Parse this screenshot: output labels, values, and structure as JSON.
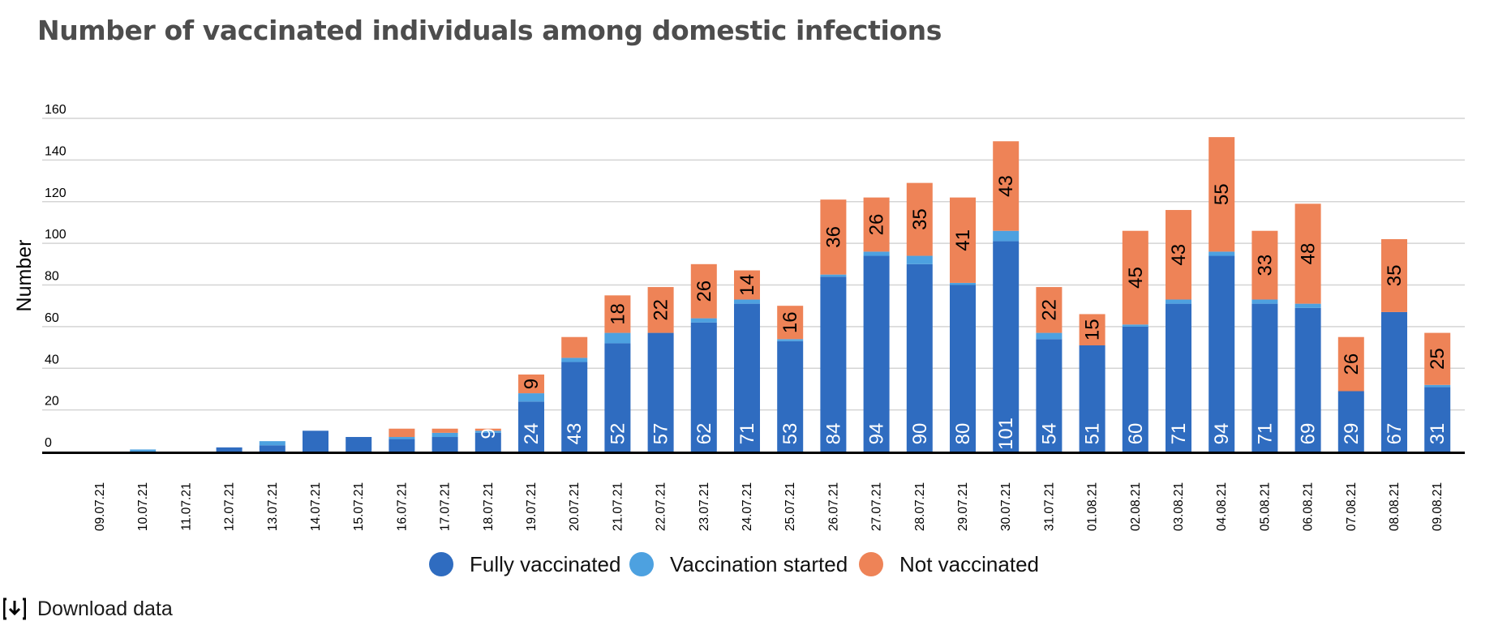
{
  "title": "Number of vaccinated individuals among domestic infections",
  "download_label": "Download data",
  "colors": {
    "fully": "#2f6cc0",
    "started": "#4da1e0",
    "not": "#ee8357",
    "grid": "#d4d4d4",
    "axis": "#000000"
  },
  "chart_data": {
    "type": "bar",
    "stacked": true,
    "ylabel": "Number",
    "ylim": [
      0,
      160
    ],
    "yticks": [
      0,
      20,
      40,
      60,
      80,
      100,
      120,
      140,
      160
    ],
    "grid": true,
    "legend_position": "bottom-center",
    "categories": [
      "09.07.21",
      "10.07.21",
      "11.07.21",
      "12.07.21",
      "13.07.21",
      "14.07.21",
      "15.07.21",
      "16.07.21",
      "17.07.21",
      "18.07.21",
      "19.07.21",
      "20.07.21",
      "21.07.21",
      "22.07.21",
      "23.07.21",
      "24.07.21",
      "25.07.21",
      "26.07.21",
      "27.07.21",
      "28.07.21",
      "29.07.21",
      "30.07.21",
      "31.07.21",
      "01.08.21",
      "02.08.21",
      "03.08.21",
      "04.08.21",
      "05.08.21",
      "06.08.21",
      "07.08.21",
      "08.08.21",
      "09.08.21"
    ],
    "series": [
      {
        "name": "Fully vaccinated",
        "color": "#2f6cc0",
        "values": [
          0,
          0,
          0,
          2,
          3,
          10,
          7,
          6,
          7,
          9,
          24,
          43,
          52,
          57,
          62,
          71,
          53,
          84,
          94,
          90,
          80,
          101,
          54,
          51,
          60,
          71,
          94,
          71,
          69,
          29,
          67,
          31
        ],
        "labels": [
          "",
          "",
          "",
          "",
          "",
          "",
          "",
          "",
          "",
          "9",
          "24",
          "43",
          "52",
          "57",
          "62",
          "71",
          "53",
          "84",
          "94",
          "90",
          "80",
          "101",
          "54",
          "51",
          "60",
          "71",
          "94",
          "71",
          "69",
          "29",
          "67",
          "31"
        ]
      },
      {
        "name": "Vaccination started",
        "color": "#4da1e0",
        "values": [
          0,
          1,
          0,
          0,
          2,
          0,
          0,
          1,
          2,
          1,
          4,
          2,
          5,
          0,
          2,
          2,
          1,
          1,
          2,
          4,
          1,
          5,
          3,
          0,
          1,
          2,
          2,
          2,
          2,
          0,
          0,
          1
        ],
        "labels": [
          "",
          "",
          "",
          "",
          "",
          "",
          "",
          "",
          "",
          "",
          "",
          "",
          "",
          "",
          "",
          "",
          "",
          "",
          "",
          "",
          "",
          "",
          "",
          "",
          "",
          "",
          "",
          "",
          "",
          "",
          "",
          ""
        ]
      },
      {
        "name": "Not vaccinated",
        "color": "#ee8357",
        "values": [
          0,
          0,
          0,
          0,
          0,
          0,
          0,
          4,
          2,
          1,
          9,
          10,
          18,
          22,
          26,
          14,
          16,
          36,
          26,
          35,
          41,
          43,
          22,
          15,
          45,
          43,
          55,
          33,
          48,
          26,
          35,
          25
        ],
        "labels": [
          "",
          "",
          "",
          "",
          "",
          "",
          "",
          "",
          "",
          "",
          "9",
          "",
          "18",
          "22",
          "26",
          "14",
          "16",
          "36",
          "26",
          "35",
          "41",
          "43",
          "22",
          "15",
          "45",
          "43",
          "55",
          "33",
          "48",
          "26",
          "35",
          "25"
        ]
      }
    ]
  }
}
